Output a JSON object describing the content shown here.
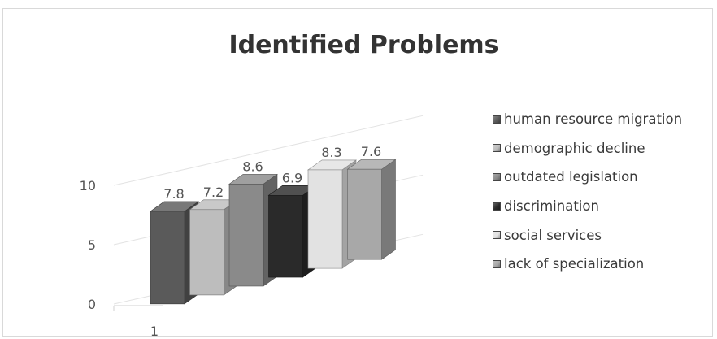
{
  "chart_data": {
    "type": "bar",
    "title": "Identified Problems",
    "categories": [
      "1"
    ],
    "series": [
      {
        "name": "human resource migration",
        "values": [
          7.8
        ],
        "color": "#5a5a5a"
      },
      {
        "name": "demographic decline",
        "values": [
          7.2
        ],
        "color": "#bdbdbd"
      },
      {
        "name": "outdated legislation",
        "values": [
          8.6
        ],
        "color": "#8a8a8a"
      },
      {
        "name": "discrimination",
        "values": [
          6.9
        ],
        "color": "#2a2a2a"
      },
      {
        "name": "social services",
        "values": [
          8.3
        ],
        "color": "#e2e2e2"
      },
      {
        "name": "lack of specialization",
        "values": [
          7.6
        ],
        "color": "#a8a8a8"
      }
    ],
    "y_ticks": [
      "0",
      "5",
      "10"
    ],
    "ylim": [
      0,
      10
    ],
    "legend_position": "right",
    "grid": true,
    "style": "3d-column"
  }
}
